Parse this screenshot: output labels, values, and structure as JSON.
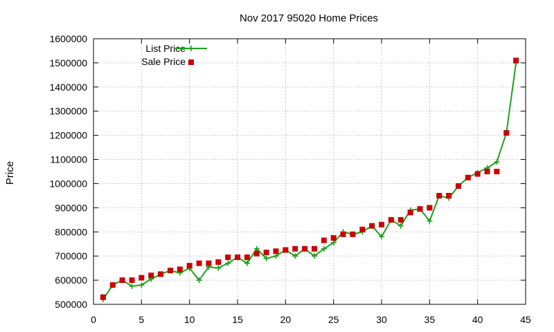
{
  "chart_data": {
    "type": "line",
    "title": "Nov 2017 95020 Home Prices",
    "xlabel": "",
    "ylabel": "Price",
    "xlim": [
      0,
      45
    ],
    "ylim": [
      500000,
      1600000
    ],
    "x_ticks": [
      "0",
      "5",
      "10",
      "15",
      "20",
      "25",
      "30",
      "35",
      "40",
      "45"
    ],
    "y_ticks": [
      "500000",
      "600000",
      "700000",
      "800000",
      "900000",
      "1000000",
      "1100000",
      "1200000",
      "1300000",
      "1400000",
      "1500000",
      "1600000"
    ],
    "grid": true,
    "legend_position": "top-left",
    "series": [
      {
        "name": "List Price",
        "style": "line-with-plus-markers",
        "color": "#1aa21a",
        "x": [
          1,
          2,
          3,
          4,
          5,
          6,
          7,
          8,
          9,
          10,
          11,
          12,
          13,
          14,
          15,
          16,
          17,
          18,
          19,
          20,
          21,
          22,
          23,
          24,
          25,
          26,
          27,
          28,
          29,
          30,
          31,
          32,
          33,
          34,
          35,
          36,
          37,
          38,
          39,
          40,
          41,
          42,
          43,
          44
        ],
        "values": [
          520000,
          580000,
          600000,
          575000,
          580000,
          605000,
          625000,
          640000,
          630000,
          650000,
          600000,
          655000,
          650000,
          670000,
          695000,
          670000,
          730000,
          690000,
          700000,
          725000,
          700000,
          730000,
          700000,
          730000,
          755000,
          800000,
          790000,
          800000,
          825000,
          780000,
          850000,
          825000,
          890000,
          895000,
          845000,
          950000,
          940000,
          990000,
          1025000,
          1045000,
          1065000,
          1090000,
          1210000,
          1500000
        ]
      },
      {
        "name": "Sale Price",
        "style": "square-markers",
        "color": "#cc0000",
        "x": [
          1,
          2,
          3,
          4,
          5,
          6,
          7,
          8,
          9,
          10,
          11,
          12,
          13,
          14,
          15,
          16,
          17,
          18,
          19,
          20,
          21,
          22,
          23,
          24,
          25,
          26,
          27,
          28,
          29,
          30,
          31,
          32,
          33,
          34,
          35,
          36,
          37,
          38,
          39,
          40,
          41,
          42,
          43,
          44
        ],
        "values": [
          530000,
          580000,
          600000,
          600000,
          610000,
          620000,
          625000,
          640000,
          645000,
          660000,
          670000,
          670000,
          675000,
          695000,
          695000,
          695000,
          710000,
          715000,
          720000,
          725000,
          730000,
          730000,
          730000,
          765000,
          775000,
          790000,
          790000,
          810000,
          825000,
          830000,
          850000,
          850000,
          880000,
          895000,
          900000,
          950000,
          950000,
          990000,
          1025000,
          1040000,
          1050000,
          1050000,
          1210000,
          1510000
        ]
      }
    ]
  }
}
